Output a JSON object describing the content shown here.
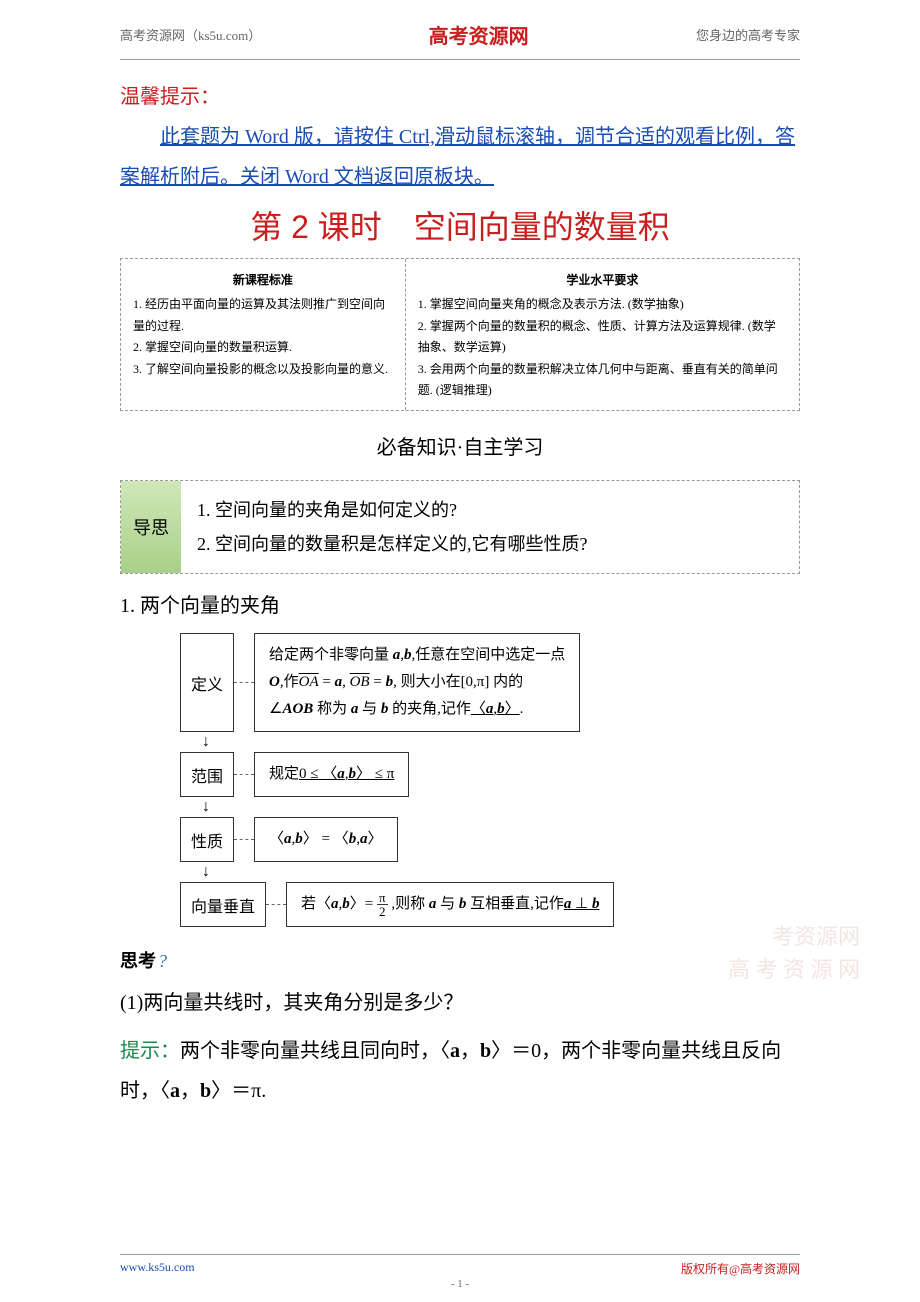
{
  "header": {
    "left": "高考资源网（ks5u.com）",
    "center": "高考资源网",
    "right": "您身边的高考专家"
  },
  "tip": {
    "title": "温馨提示：",
    "body": "此套题为 Word 版，请按住 Ctrl,滑动鼠标滚轴，调节合适的观看比例，答案解析附后。关闭 Word 文档返回原板块。"
  },
  "lesson_title": "第 2 课时　空间向量的数量积",
  "standards": {
    "left_header": "新课程标准",
    "right_header": "学业水平要求",
    "left_items": [
      "1. 经历由平面向量的运算及其法则推广到空间向量的过程.",
      "2. 掌握空间向量的数量积运算.",
      "3. 了解空间向量投影的概念以及投影向量的意义."
    ],
    "right_items": [
      "1. 掌握空间向量夹角的概念及表示方法. (数学抽象)",
      "2. 掌握两个向量的数量积的概念、性质、计算方法及运算规律. (数学抽象、数学运算)",
      "3. 会用两个向量的数量积解决立体几何中与距离、垂直有关的简单问题. (逻辑推理)"
    ]
  },
  "section_title": "必备知识·自主学习",
  "guide": {
    "label": "导思",
    "items": [
      "1. 空间向量的夹角是如何定义的?",
      "2. 空间向量的数量积是怎样定义的,它有哪些性质?"
    ]
  },
  "section_num": "1. 两个向量的夹角",
  "diagram": {
    "rows": [
      {
        "label": "定义",
        "content_html": "给定两个非零向量 <span class='italic-bold'>a</span>,<span class='italic-bold'>b</span>,任意在空间中选定一点<br><span class='italic-bold'>O</span>,作<span class='vec'>OA</span> = <span class='italic-bold'>a</span>, <span class='vec'>OB</span> = <span class='italic-bold'>b</span>, 则大小在[0,π] 内的<br>∠<span class='italic-bold'>AOB</span> 称为 <span class='italic-bold'>a</span> 与 <span class='italic-bold'>b</span> 的夹角,记作<span class='underline'>〈<span class='italic-bold'>a</span>,<span class='italic-bold'>b</span>〉</span>."
      },
      {
        "label": "范围",
        "content_html": "规定<span class='underline'>0 ≤ 〈<span class='italic-bold'>a</span>,<span class='italic-bold'>b</span>〉 ≤ π</span>"
      },
      {
        "label": "性质",
        "content_html": "〈<span class='italic-bold'>a</span>,<span class='italic-bold'>b</span>〉 = 〈<span class='italic-bold'>b</span>,<span class='italic-bold'>a</span>〉"
      },
      {
        "label": "向量垂直",
        "content_html": "若〈<span class='italic-bold'>a</span>,<span class='italic-bold'>b</span>〉= <span class='frac'><span class='frac-num'>π</span><span class='frac-den'>2</span></span> ,则称 <span class='italic-bold'>a</span> 与 <span class='italic-bold'>b</span> 互相垂直,记作<span class='underline'><span class='italic-bold'>a</span> ⊥ <span class='italic-bold'>b</span></span>"
      }
    ]
  },
  "thinking": {
    "label": "思考",
    "q_mark": "?"
  },
  "question": "(1)两向量共线时，其夹角分别是多少？",
  "answer": {
    "label": "提示：",
    "text": "两个非零向量共线且同向时，〈a，b〉＝0，两个非零向量共线且反向时，〈a，b〉＝π."
  },
  "watermark": {
    "line1": "考资源网",
    "line2": "高 考 资 源 网"
  },
  "footer": {
    "left": "www.ks5u.com",
    "right": "版权所有@高考资源网"
  },
  "page_num": "- 1 -",
  "colors": {
    "red": "#c81e1e",
    "blue": "#1a4db3",
    "green": "#1a8a4a",
    "guide_bg_top": "#d0e8b8",
    "guide_bg_bottom": "#a8d088"
  }
}
